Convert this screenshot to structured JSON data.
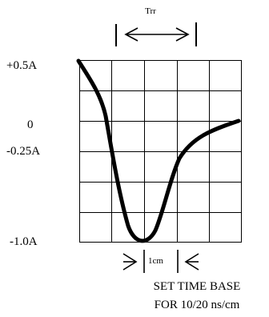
{
  "diagram": {
    "trr_label": "Trr",
    "y_labels": {
      "plus_half": "+0.5A",
      "zero": "0",
      "minus_quarter": "-0.25A",
      "minus_one": "-1.0A"
    },
    "division_label": "1cm",
    "caption": {
      "line1": "SET TIME BASE",
      "line2": "FOR 10/20 ns/cm"
    }
  }
}
